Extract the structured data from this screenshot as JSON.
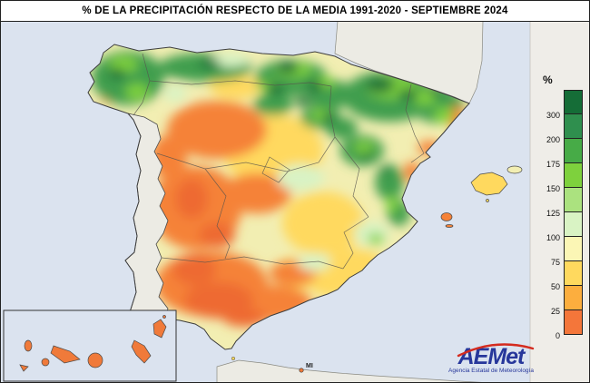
{
  "title": "% DE LA PRECIPITACIÓN RESPECTO DE LA MEDIA 1991-2020 - SEPTIEMBRE 2024",
  "legend": {
    "unit": "%",
    "entries": [
      {
        "label": "300",
        "color": "#156d37"
      },
      {
        "label": "200",
        "color": "#2f8f4e"
      },
      {
        "label": "175",
        "color": "#47ab47"
      },
      {
        "label": "150",
        "color": "#7ed13d"
      },
      {
        "label": "125",
        "color": "#abe27f"
      },
      {
        "label": "100",
        "color": "#d9f3c4"
      },
      {
        "label": "75",
        "color": "#fbf6b5"
      },
      {
        "label": "50",
        "color": "#ffd95e"
      },
      {
        "label": "25",
        "color": "#fcae3e"
      },
      {
        "label": "0",
        "color": "#f4763a"
      }
    ]
  },
  "map": {
    "melilla_label": "MI",
    "sea_color": "#dbe3ef",
    "neutral_land_color": "#ecebe4"
  },
  "logo": {
    "name": "AEMet",
    "subtitle": "Agencia Estatal de Meteorología"
  }
}
